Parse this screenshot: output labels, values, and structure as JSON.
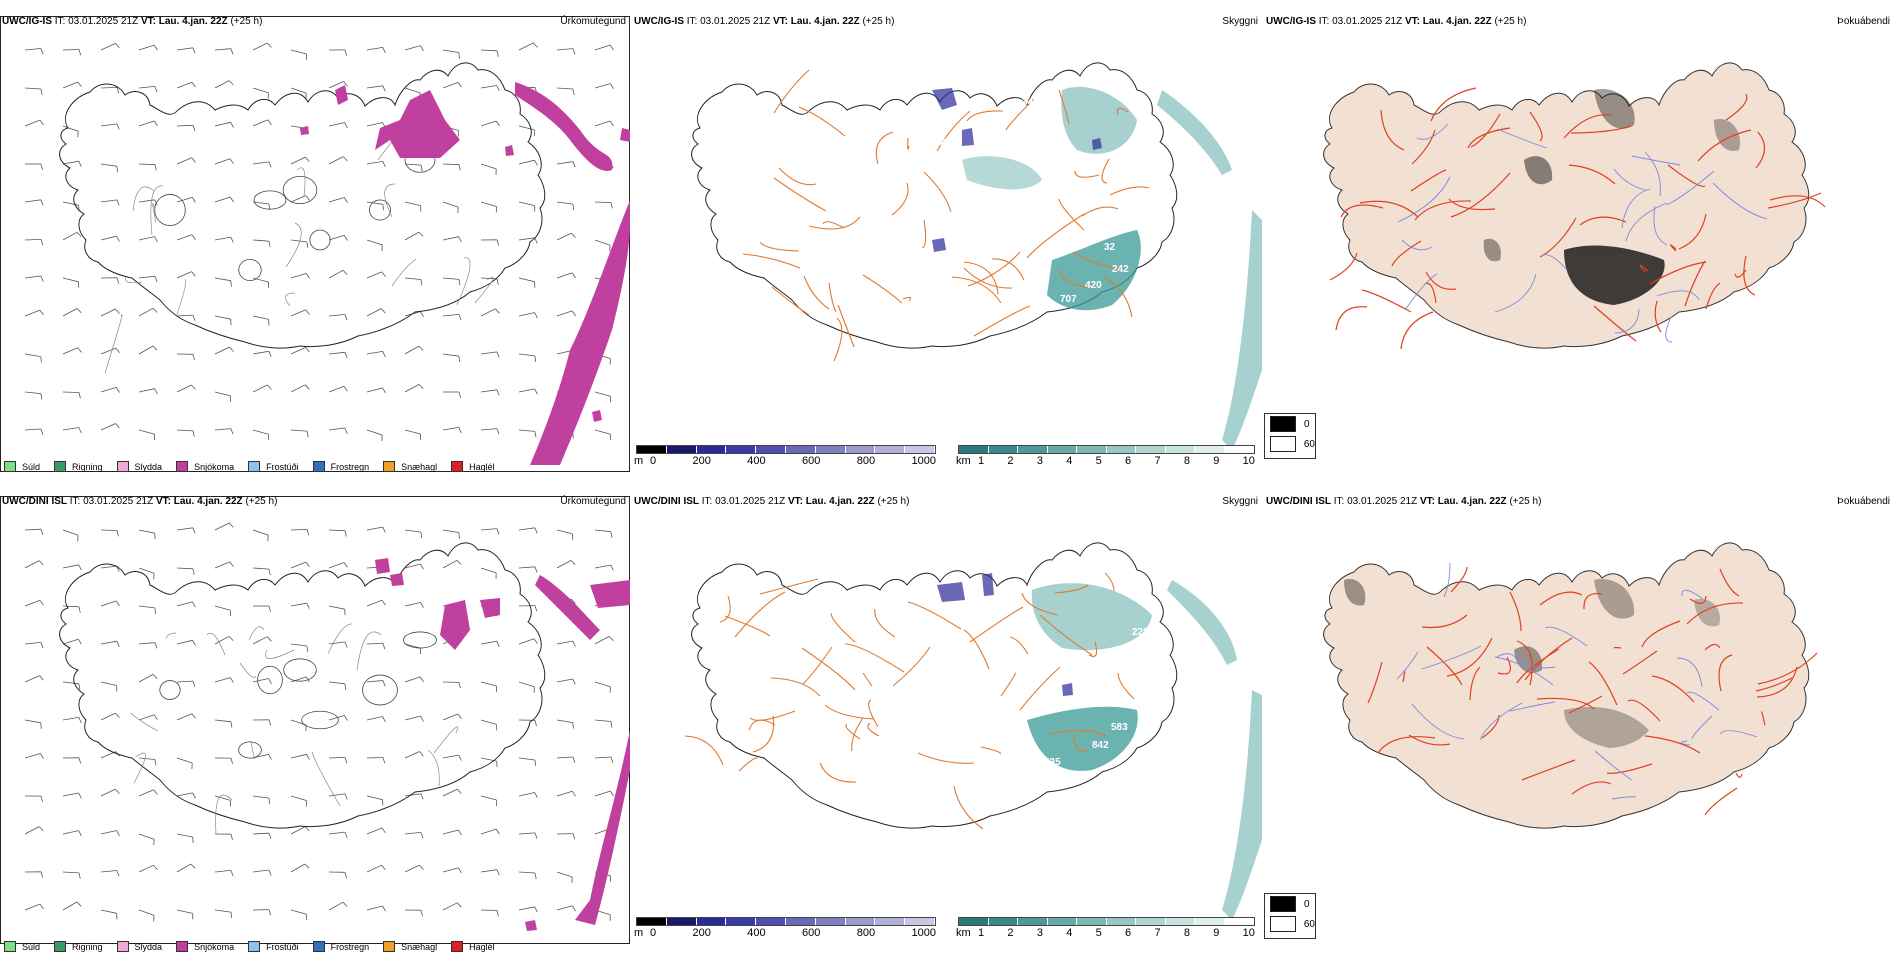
{
  "header": {
    "ig_model": "UWC/IG-IS",
    "dini_model": "UWC/DINI ISL",
    "it_label": "IT: 03.01.2025 21Z",
    "vt_label": "VT: Lau. 4.jan. 22Z",
    "lead": "(+25 h)"
  },
  "titles": {
    "precip": "Úrkomutegund",
    "cloudbase": "Skyggni",
    "cloudcover": "Þokuábendi"
  },
  "precip_legend": [
    {
      "label": "Súld",
      "color": "#7fe07f"
    },
    {
      "label": "Rigning",
      "color": "#3a9a6a"
    },
    {
      "label": "Slydda",
      "color": "#f0a8d8"
    },
    {
      "label": "Snjókoma",
      "color": "#c040a0"
    },
    {
      "label": "Frostúði",
      "color": "#90c0f0"
    },
    {
      "label": "Frostregn",
      "color": "#3070c0"
    },
    {
      "label": "Snæhagl",
      "color": "#f0a020"
    },
    {
      "label": "Haglél",
      "color": "#e02020"
    }
  ],
  "height_scale": {
    "unit": "m",
    "ticks": [
      "0",
      "200",
      "400",
      "600",
      "800",
      "1000"
    ],
    "colors": [
      "#000000",
      "#1a1a6a",
      "#2a2a9a",
      "#3a3aaa",
      "#5050b0",
      "#6a6ab8",
      "#8080c0",
      "#9a9acc",
      "#b0b0d8",
      "#c8c8e4"
    ]
  },
  "visibility_scale": {
    "unit": "km",
    "ticks": [
      "1",
      "2",
      "3",
      "4",
      "5",
      "6",
      "7",
      "8",
      "9",
      "10"
    ],
    "colors": [
      "#2a7a7a",
      "#3a8a8a",
      "#4f9a98",
      "#68aaa8",
      "#80b8b6",
      "#98c8c4",
      "#b0d6d2",
      "#c8e4e0",
      "#e0f0ee",
      "#ffffff"
    ]
  },
  "cover_legend": {
    "low": "0",
    "high": "60"
  },
  "top_labels": [
    "345",
    "218",
    "707",
    "420",
    "242",
    "32"
  ],
  "bottom_labels": [
    "228",
    "583",
    "842",
    "535"
  ],
  "colors": {
    "snow": "#c040a0",
    "teal": "#3a9a96",
    "land": "#f2e0d2",
    "road": "#e07a30",
    "road_red": "#e04020"
  }
}
